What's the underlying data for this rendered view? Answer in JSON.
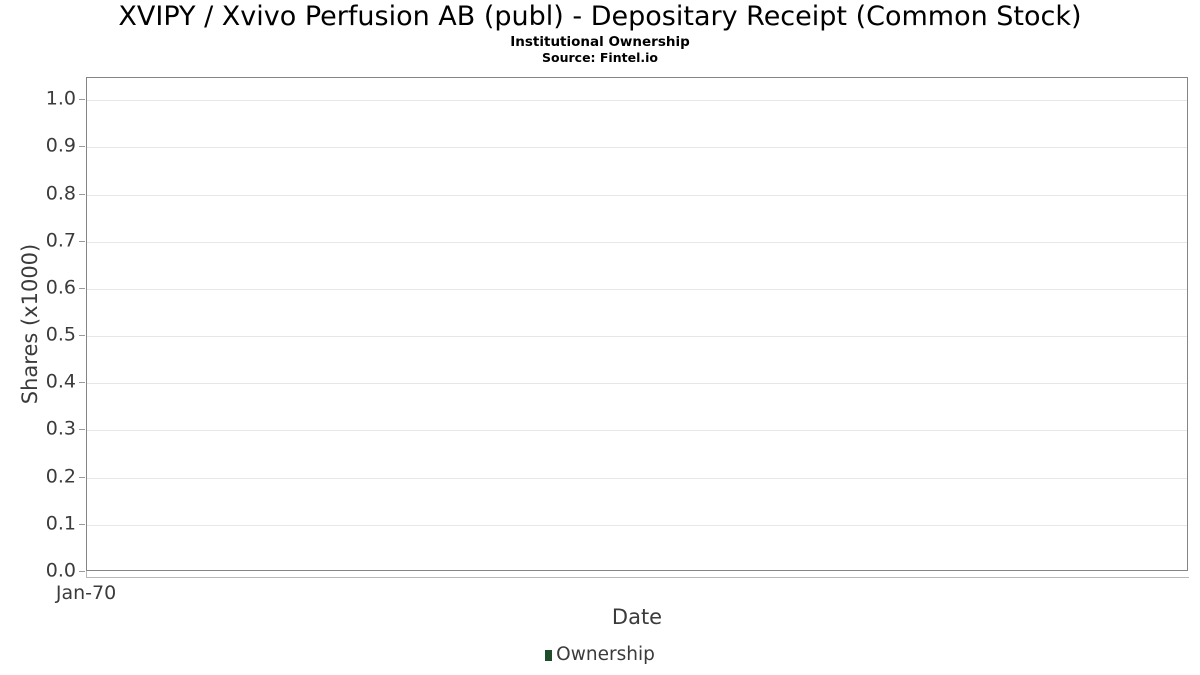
{
  "header": {
    "title": "XVIPY / Xvivo Perfusion AB (publ) - Depositary Receipt (Common Stock)",
    "subtitle": "Institutional Ownership",
    "source": "Source: Fintel.io"
  },
  "chart_data": {
    "type": "line",
    "title": "XVIPY / Xvivo Perfusion AB (publ) - Depositary Receipt (Common Stock)",
    "subtitle": "Institutional Ownership",
    "source": "Source: Fintel.io",
    "xlabel": "Date",
    "ylabel": "Shares (x1000)",
    "xticks": [
      "Jan-70"
    ],
    "yticks": [
      0.0,
      0.1,
      0.2,
      0.3,
      0.4,
      0.5,
      0.6,
      0.7,
      0.8,
      0.9,
      1.0
    ],
    "ytick_labels": [
      "0.0",
      "0.1",
      "0.2",
      "0.3",
      "0.4",
      "0.5",
      "0.6",
      "0.7",
      "0.8",
      "0.9",
      "1.0"
    ],
    "ylim": [
      0,
      1.047
    ],
    "grid": true,
    "legend_position": "bottom",
    "legend": [
      {
        "label": "Ownership",
        "color": "#1e4d2b"
      }
    ],
    "series": [
      {
        "name": "Ownership",
        "x": [],
        "y": []
      }
    ]
  },
  "colors": {
    "plot_border": "#858585",
    "gridline": "#e7e7e7",
    "axis_text": "#3b3b3b",
    "x_axis_line": "#b8b8b8",
    "ownership_green": "#1e4d2b",
    "background": "#ffffff"
  }
}
